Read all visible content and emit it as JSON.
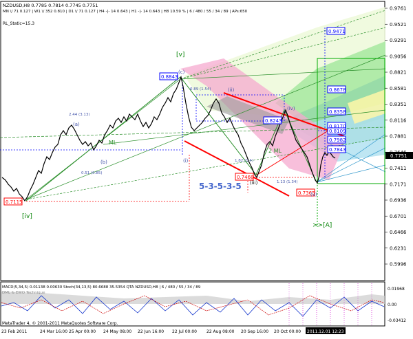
{
  "header": {
    "symbol_line": "NZDUSD,H8  0.7785 0.7814 0.7745 0.7751",
    "tf_line": "MN \\/ 71    0.127  |  W1 \\/ 352    0.810  |  D1 \\/ 71    0.127  |  H4 -|- 14    0.643  |  H1 -|- 14    0.643  |  H8    10.59 %  |  6 / 480 / 55 / 34 / 89  |  APs:650",
    "rl_static": "RL_Static=15.3"
  },
  "price_axis": {
    "ticks": [
      "0.9761",
      "0.9521",
      "0.9291",
      "0.9056",
      "0.8821",
      "0.8581",
      "0.8351",
      "0.8116",
      "0.7881",
      "0.7646",
      "0.7411",
      "0.7171",
      "0.6936",
      "0.6701",
      "0.6466",
      "0.6231",
      "0.5996"
    ],
    "current_price": "0.7751",
    "current_price_color": "#000000"
  },
  "macd_axis": {
    "ticks": [
      "0.01968",
      "0.00",
      "-0.03412"
    ]
  },
  "time_axis": {
    "labels": [
      "23 Feb 2011",
      "24 Mar 16:00",
      "25 Apr 00:00",
      "24 May 08:00",
      "22 Jun 16:00",
      "22 Jul 00:00",
      "22 Aug 08:00",
      "20 Sep 16:00",
      "20 Oct 00:00",
      "2011.12.01 12:23"
    ]
  },
  "wave_labels": {
    "v_top": "[v]",
    "iv_bottom": "[iv]",
    "a_label": "(a)",
    "b_label": "(b)",
    "c_label": "(c)",
    "i_label": "(i)",
    "ii_label": "(ii)",
    "iii_label": "(iii)",
    "iv_label": "(iv)",
    "v_label": "(v)",
    "pattern": "5-3-5-3-5",
    "target": ">>[A]",
    "ml_left": "ML",
    "ml_right": "2 ML"
  },
  "fib_text": {
    "f1": "2.44 (3.13)",
    "f2": "0.51 (0.85)",
    "f3": "0.89 (1.54)",
    "f4": "1.82 (1.4)",
    "f5": "1.13 (1.34)"
  },
  "price_boxes": {
    "p1": "0.7115",
    "p2": "0.8843",
    "p3": "0.7468",
    "p4": "0.8243",
    "p5": "0.7365",
    "p6": "0.9471",
    "p7": "0.8678",
    "p8": "0.8358",
    "p9": "0.8170",
    "p10": "0.8109",
    "p11": "0.7982",
    "p12": "0.7843"
  },
  "indicator": {
    "title": "MACD(5,34,5)  0.01138  0.00630  Stoch(34,13,5)  80.6688  35.5354   QTA  NZDUSD,H8  |  6 / 480 / 55 / 34 / 89",
    "sub": "DML & EWO  Technique",
    "copyright": "MetaTrader 4, © 2001-2011 MetaQuotes Software Corp."
  },
  "colors": {
    "bullish_channel": "#66cc66",
    "bearish_channel": "#ff99cc",
    "cyan_zone": "#99ddee",
    "price_box_blue": "#0000ff",
    "price_box_red": "#ff0000",
    "wave_green": "#008000",
    "trend_red": "#ff0000"
  }
}
